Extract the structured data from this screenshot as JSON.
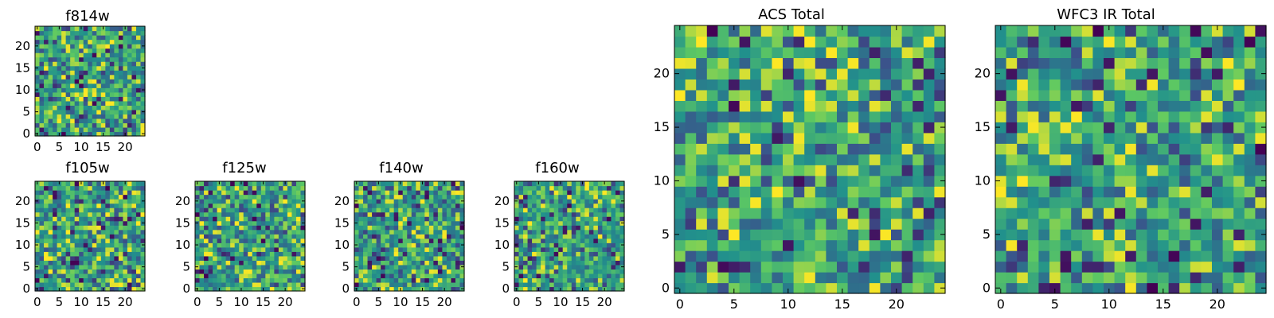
{
  "chart_data": [
    {
      "type": "heatmap",
      "title": "f814w",
      "extent": [
        0,
        24
      ],
      "xticks": [
        0,
        5,
        10,
        15,
        20
      ],
      "yticks": [
        0,
        5,
        10,
        15,
        20
      ],
      "colormap": "viridis",
      "seed": 814
    },
    {
      "type": "heatmap",
      "title": "f105w",
      "extent": [
        0,
        24
      ],
      "xticks": [
        0,
        5,
        10,
        15,
        20
      ],
      "yticks": [
        0,
        5,
        10,
        15,
        20
      ],
      "colormap": "viridis",
      "seed": 105
    },
    {
      "type": "heatmap",
      "title": "f125w",
      "extent": [
        0,
        24
      ],
      "xticks": [
        0,
        5,
        10,
        15,
        20
      ],
      "yticks": [
        0,
        5,
        10,
        15,
        20
      ],
      "colormap": "viridis",
      "seed": 125
    },
    {
      "type": "heatmap",
      "title": "f140w",
      "extent": [
        0,
        24
      ],
      "xticks": [
        0,
        5,
        10,
        15,
        20
      ],
      "yticks": [
        0,
        5,
        10,
        15,
        20
      ],
      "colormap": "viridis",
      "seed": 140
    },
    {
      "type": "heatmap",
      "title": "f160w",
      "extent": [
        0,
        24
      ],
      "xticks": [
        0,
        5,
        10,
        15,
        20
      ],
      "yticks": [
        0,
        5,
        10,
        15,
        20
      ],
      "colormap": "viridis",
      "seed": 160
    },
    {
      "type": "heatmap",
      "title": "ACS Total",
      "extent": [
        0,
        24
      ],
      "xticks": [
        0,
        5,
        10,
        15,
        20
      ],
      "yticks": [
        0,
        5,
        10,
        15,
        20
      ],
      "colormap": "viridis",
      "seed": 7
    },
    {
      "type": "heatmap",
      "title": "WFC3 IR Total",
      "extent": [
        0,
        24
      ],
      "xticks": [
        0,
        5,
        10,
        15,
        20
      ],
      "yticks": [
        0,
        5,
        10,
        15,
        20
      ],
      "colormap": "viridis",
      "seed": 33
    }
  ]
}
